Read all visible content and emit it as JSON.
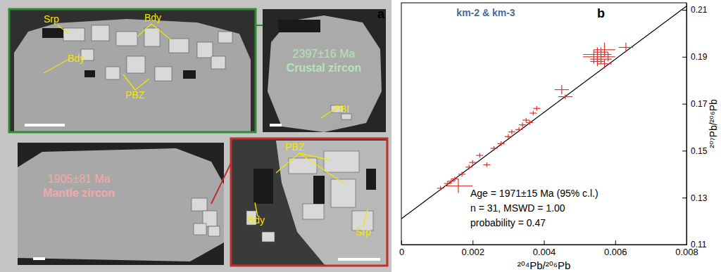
{
  "panel_a": {
    "label": "a",
    "images": [
      {
        "labels": [
          "Srp",
          "Bdy",
          "Bdy",
          "PBZ"
        ]
      },
      {
        "age": "2397±16 Ma",
        "zircon": "Crustal zircon",
        "labels": [
          "ZBI"
        ]
      },
      {
        "age": "1905±81 Ma",
        "zircon": "Mantle zircon"
      },
      {
        "labels": [
          "PBZ",
          "Srp",
          "Bdy"
        ]
      }
    ]
  },
  "chart_data": {
    "type": "scatter",
    "title": "km-2 & km-3",
    "panel_label": "b",
    "x_label": "²⁰⁴Pb/²⁰⁶Pb",
    "y_label": "²⁰⁷Pb/²⁰⁶Pb",
    "xlim": [
      0,
      0.008
    ],
    "ylim": [
      0.11,
      0.213
    ],
    "xticks": [
      0,
      0.002,
      0.004,
      0.006,
      0.008
    ],
    "yticks": [
      0.11,
      0.13,
      0.15,
      0.17,
      0.19,
      0.21
    ],
    "series": [
      {
        "color": "#e0302a",
        "marker": "cross",
        "x": [
          0.0011,
          0.0013,
          0.0014,
          0.0015,
          0.0016,
          0.0017,
          0.0019,
          0.002,
          0.0022,
          0.0024,
          0.0026,
          0.0028,
          0.003,
          0.0031,
          0.0033,
          0.0034,
          0.0035,
          0.0036,
          0.0037,
          0.0038,
          0.0045,
          0.0046,
          0.0054,
          0.0055,
          0.0055,
          0.0056,
          0.0056,
          0.0057,
          0.0057,
          0.0058,
          0.0063
        ],
        "values": [
          0.134,
          0.136,
          0.137,
          0.138,
          0.135,
          0.14,
          0.143,
          0.145,
          0.148,
          0.144,
          0.151,
          0.153,
          0.156,
          0.158,
          0.159,
          0.161,
          0.163,
          0.162,
          0.166,
          0.168,
          0.176,
          0.173,
          0.19,
          0.191,
          0.188,
          0.192,
          0.189,
          0.193,
          0.187,
          0.19,
          0.194
        ],
        "x_error": [
          0.0001,
          0.0001,
          0.0001,
          0.0001,
          0.0004,
          0.0001,
          0.0001,
          0.0001,
          0.0001,
          0.0001,
          0.0001,
          0.0001,
          0.0001,
          0.0001,
          0.0001,
          0.0001,
          0.0001,
          0.0001,
          0.0001,
          0.0001,
          0.0002,
          0.0002,
          0.0003,
          0.0004,
          0.0002,
          0.0002,
          0.0003,
          0.0003,
          0.0002,
          0.0002,
          0.0002
        ],
        "y_error": [
          0.001,
          0.001,
          0.001,
          0.001,
          0.003,
          0.001,
          0.001,
          0.001,
          0.001,
          0.001,
          0.001,
          0.001,
          0.001,
          0.001,
          0.001,
          0.001,
          0.001,
          0.001,
          0.001,
          0.001,
          0.002,
          0.001,
          0.003,
          0.003,
          0.002,
          0.002,
          0.002,
          0.003,
          0.002,
          0.002,
          0.002
        ]
      }
    ],
    "fit_line": {
      "x": [
        0,
        0.008
      ],
      "y": [
        0.121,
        0.2116
      ]
    },
    "annotations": [
      "Age = 1971±15 Ma (95% c.l.)",
      "n = 31, MSWD = 1.00",
      "probability = 0.47"
    ]
  }
}
